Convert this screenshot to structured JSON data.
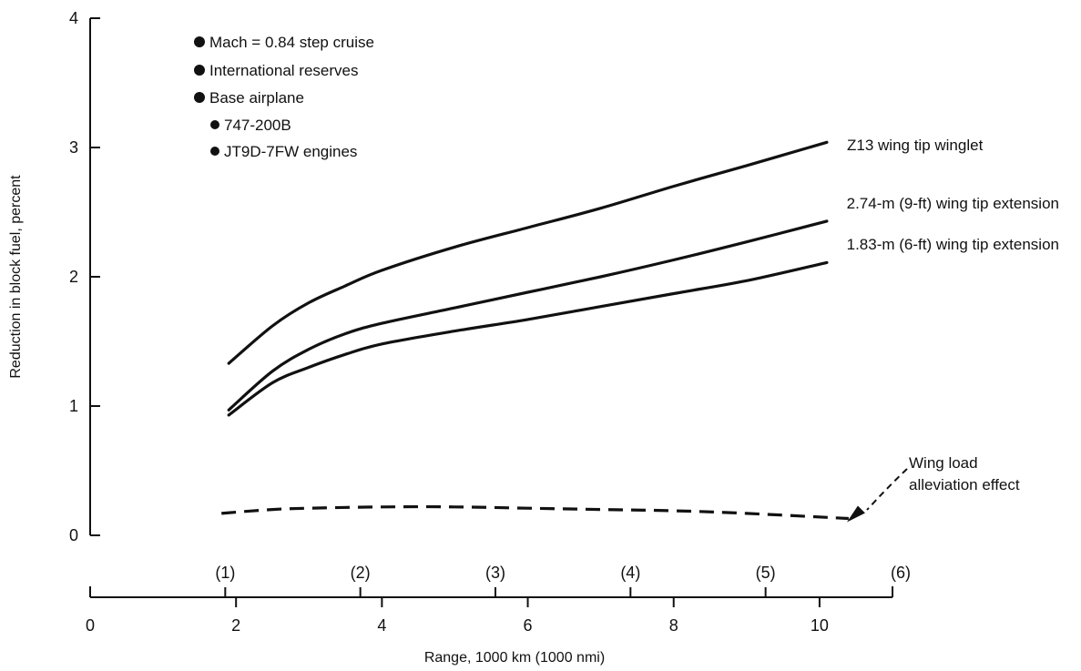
{
  "chart_data": {
    "type": "line",
    "title": "",
    "xlabel": "Range, 1000 km (1000 nmi)",
    "ylabel": "Reduction in block fuel, percent",
    "xlim": [
      0,
      11
    ],
    "ylim": [
      0,
      4
    ],
    "x_ticks": [
      0,
      2,
      4,
      6,
      8,
      10
    ],
    "x_tick_labels": [
      "0",
      "2",
      "4",
      "6",
      "8",
      "10"
    ],
    "x_secondary_ticks_km": [
      1.852,
      3.704,
      5.556,
      7.408,
      9.26,
      11.112
    ],
    "x_secondary_tick_labels": [
      "(1)",
      "(2)",
      "(3)",
      "(4)",
      "(5)",
      "(6)"
    ],
    "y_ticks": [
      0,
      1,
      2,
      3,
      4
    ],
    "y_tick_labels": [
      "0",
      "1",
      "2",
      "3",
      "4"
    ],
    "grid": false,
    "notes": [
      "Mach = 0.84 step cruise",
      "International reserves",
      "Base airplane",
      "747-200B",
      "JT9D-7FW engines"
    ],
    "series": [
      {
        "name": "Z13 wing tip winglet",
        "style": "solid",
        "x": [
          1.9,
          2.5,
          3,
          3.5,
          4,
          5,
          6,
          7,
          8,
          9,
          10.1
        ],
        "y": [
          1.33,
          1.62,
          1.8,
          1.93,
          2.05,
          2.23,
          2.38,
          2.53,
          2.7,
          2.86,
          3.04
        ]
      },
      {
        "name": "2.74-m (9-ft) wing tip extension",
        "style": "solid",
        "x": [
          1.9,
          2.5,
          3,
          3.5,
          4,
          5,
          6,
          7,
          8,
          9,
          10.1
        ],
        "y": [
          0.97,
          1.27,
          1.44,
          1.56,
          1.64,
          1.76,
          1.88,
          2.0,
          2.13,
          2.27,
          2.43
        ]
      },
      {
        "name": "1.83-m (6-ft) wing tip extension",
        "style": "solid",
        "x": [
          1.9,
          2.5,
          3,
          3.5,
          4,
          5,
          6,
          7,
          8,
          9,
          10.1
        ],
        "y": [
          0.93,
          1.18,
          1.3,
          1.4,
          1.48,
          1.58,
          1.67,
          1.77,
          1.87,
          1.97,
          2.11
        ]
      },
      {
        "name": "Wing load alleviation effect",
        "style": "dashed",
        "x": [
          1.8,
          2.5,
          3,
          4,
          5,
          6,
          7,
          8,
          9,
          10.4
        ],
        "y": [
          0.17,
          0.2,
          0.21,
          0.22,
          0.22,
          0.21,
          0.2,
          0.19,
          0.17,
          0.13
        ]
      }
    ],
    "annotation": {
      "text_lines": [
        "Wing load",
        "alleviation effect"
      ],
      "points_to_x": 10.4,
      "points_to_y": 0.13
    }
  }
}
